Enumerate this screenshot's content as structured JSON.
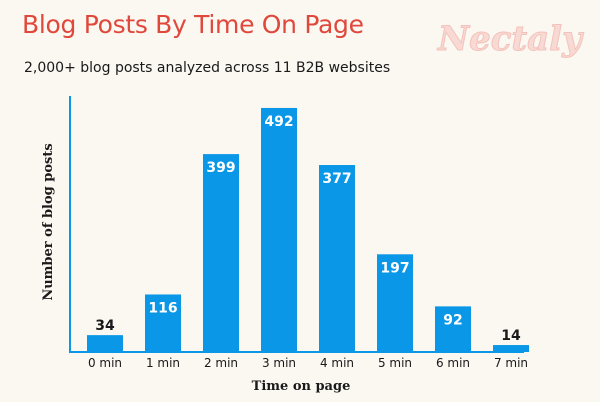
{
  "header": {
    "title": "Blog Posts By Time On Page",
    "subtitle": "2,000+ blog posts analyzed across 11 B2B websites",
    "logo_text": "Nectaly"
  },
  "chart_data": {
    "type": "bar",
    "categories": [
      "0 min",
      "1 min",
      "2 min",
      "3 min",
      "4 min",
      "5 min",
      "6 min",
      "7 min"
    ],
    "values": [
      34,
      116,
      399,
      492,
      377,
      197,
      92,
      14
    ],
    "xlabel": "Time on page",
    "ylabel": "Number of blog posts",
    "ylim": [
      0,
      500
    ],
    "grid": false,
    "legend": "none",
    "bar_color": "#0a97e8",
    "title_color": "#e0483c"
  }
}
